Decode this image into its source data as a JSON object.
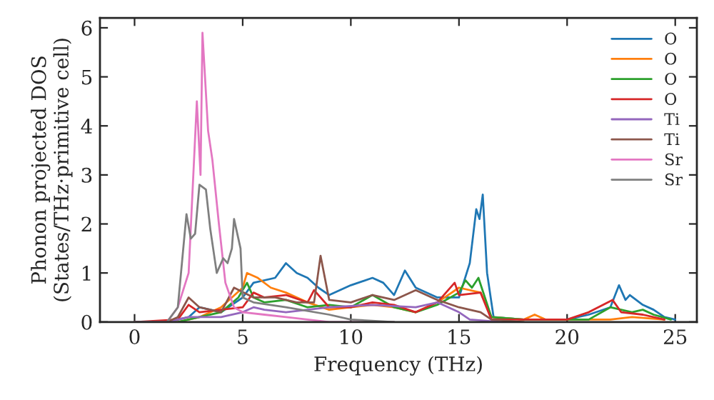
{
  "chart_data": {
    "type": "line",
    "xlabel": "Frequency (THz)",
    "ylabel": "Phonon projected DOS\n(States/THz·primitive cell)",
    "xlim": [
      -1.6,
      26
    ],
    "ylim": [
      0,
      6.2
    ],
    "xticks": [
      0,
      5,
      10,
      15,
      20,
      25
    ],
    "yticks": [
      0,
      1,
      2,
      3,
      4,
      5,
      6
    ],
    "grid": false,
    "legend": "top right",
    "series": [
      {
        "name": "O",
        "color": "#1f77b4",
        "x": [
          0,
          1.5,
          2.5,
          3,
          4,
          5,
          5.5,
          6.5,
          7,
          7.5,
          8,
          8.5,
          9,
          10,
          11,
          11.5,
          12,
          12.5,
          13,
          14,
          15,
          15.5,
          15.8,
          15.95,
          16.1,
          16.3,
          16.6,
          18,
          20,
          21,
          22,
          22.4,
          22.7,
          22.9,
          23.5,
          24,
          24.5,
          25
        ],
        "values": [
          0,
          0,
          0.1,
          0.3,
          0.2,
          0.5,
          0.8,
          0.9,
          1.2,
          1.0,
          0.9,
          0.7,
          0.55,
          0.75,
          0.9,
          0.8,
          0.55,
          1.05,
          0.7,
          0.5,
          0.5,
          1.2,
          2.3,
          2.1,
          2.6,
          1.0,
          0.1,
          0.05,
          0.05,
          0.15,
          0.3,
          0.75,
          0.45,
          0.55,
          0.35,
          0.25,
          0.1,
          0.05
        ]
      },
      {
        "name": "O",
        "color": "#ff7f0e",
        "x": [
          0,
          2,
          3,
          4,
          5,
          5.2,
          5.7,
          6.3,
          7,
          8,
          9,
          10,
          11,
          12,
          13,
          14,
          15,
          16,
          16.5,
          18,
          18.5,
          19,
          22,
          23,
          24.5
        ],
        "values": [
          0,
          0,
          0.1,
          0.3,
          0.7,
          1.0,
          0.9,
          0.7,
          0.6,
          0.4,
          0.25,
          0.3,
          0.35,
          0.3,
          0.2,
          0.4,
          0.7,
          0.6,
          0.1,
          0.05,
          0.15,
          0.05,
          0.05,
          0.1,
          0.05
        ]
      },
      {
        "name": "O",
        "color": "#2ca02c",
        "x": [
          0,
          2,
          3,
          4,
          4.8,
          5.2,
          5.5,
          6,
          7,
          8,
          9,
          10,
          11,
          12,
          13,
          14,
          15,
          15.3,
          15.6,
          15.9,
          16.2,
          16.5,
          18,
          21,
          22,
          23,
          23.5,
          24,
          24.8
        ],
        "values": [
          0,
          0,
          0.1,
          0.2,
          0.5,
          0.8,
          0.5,
          0.4,
          0.45,
          0.3,
          0.35,
          0.3,
          0.55,
          0.3,
          0.2,
          0.35,
          0.6,
          0.85,
          0.7,
          0.9,
          0.5,
          0.1,
          0.05,
          0.05,
          0.3,
          0.2,
          0.25,
          0.15,
          0.05
        ]
      },
      {
        "name": "O",
        "color": "#d62728",
        "x": [
          0,
          2,
          2.5,
          3,
          4,
          5,
          5.5,
          6,
          7,
          8,
          8.3,
          9,
          10,
          11,
          12,
          13,
          14,
          14.8,
          15,
          16,
          16.5,
          20,
          21,
          22.1,
          22.5,
          23.5,
          24.5
        ],
        "values": [
          0,
          0.05,
          0.35,
          0.2,
          0.25,
          0.3,
          0.6,
          0.5,
          0.55,
          0.4,
          0.65,
          0.3,
          0.3,
          0.4,
          0.35,
          0.2,
          0.4,
          0.8,
          0.55,
          0.6,
          0.05,
          0.05,
          0.2,
          0.45,
          0.2,
          0.15,
          0.05
        ]
      },
      {
        "name": "Ti",
        "color": "#9467bd",
        "x": [
          0,
          1.5,
          2.5,
          4,
          5,
          5.5,
          6,
          7,
          8,
          9,
          11,
          13,
          14,
          15,
          15.5,
          17
        ],
        "values": [
          0,
          0,
          0.1,
          0.1,
          0.2,
          0.3,
          0.25,
          0.2,
          0.25,
          0.3,
          0.35,
          0.3,
          0.4,
          0.2,
          0.05,
          0
        ]
      },
      {
        "name": "Ti",
        "color": "#8c564b",
        "x": [
          0,
          1.5,
          2,
          2.5,
          3,
          4,
          4.6,
          5.5,
          6.5,
          7.5,
          8.3,
          8.6,
          9,
          10,
          11,
          12,
          13,
          14,
          15,
          16,
          16.5,
          18
        ],
        "values": [
          0,
          0,
          0.1,
          0.5,
          0.3,
          0.2,
          0.7,
          0.5,
          0.5,
          0.4,
          0.4,
          1.35,
          0.45,
          0.4,
          0.55,
          0.45,
          0.65,
          0.45,
          0.3,
          0.2,
          0.05,
          0
        ]
      },
      {
        "name": "Sr",
        "color": "#e377c2",
        "x": [
          0,
          1.5,
          2,
          2.5,
          2.88,
          3.05,
          3.14,
          3.4,
          3.6,
          3.9,
          4.2,
          4.6,
          5,
          6,
          7,
          8,
          9,
          12
        ],
        "values": [
          0,
          0,
          0.3,
          1.0,
          4.5,
          3.0,
          5.9,
          3.9,
          3.3,
          2.0,
          0.8,
          0.3,
          0.2,
          0.15,
          0.1,
          0.05,
          0,
          0
        ]
      },
      {
        "name": "Sr",
        "color": "#7f7f7f",
        "x": [
          0,
          1.5,
          2,
          2.4,
          2.6,
          2.8,
          3.0,
          3.3,
          3.5,
          3.8,
          4.1,
          4.3,
          4.5,
          4.6,
          4.9,
          5.0,
          5.5,
          7,
          9,
          10,
          12
        ],
        "values": [
          0,
          0,
          0.3,
          2.2,
          1.7,
          1.8,
          2.8,
          2.7,
          1.9,
          1.0,
          1.3,
          1.2,
          1.5,
          2.1,
          1.5,
          0.5,
          0.4,
          0.3,
          0.15,
          0.05,
          0
        ]
      }
    ]
  }
}
